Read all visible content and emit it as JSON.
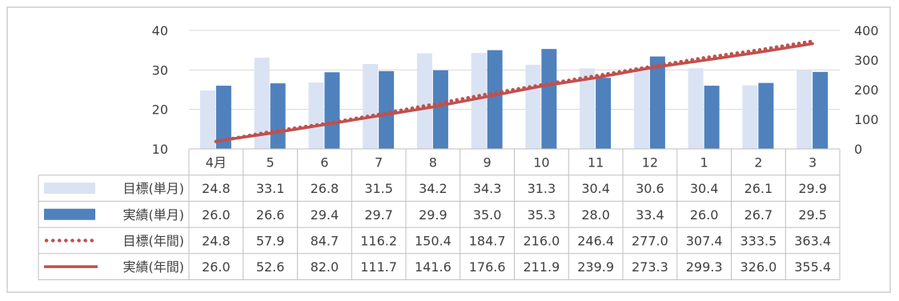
{
  "chart_data": {
    "type": "bar",
    "categories": [
      "4月",
      "5",
      "6",
      "7",
      "8",
      "9",
      "10",
      "11",
      "12",
      "1",
      "2",
      "3"
    ],
    "left_axis": {
      "min": 10,
      "max": 40,
      "ticks": [
        10,
        20,
        30,
        40
      ]
    },
    "right_axis": {
      "min": 0,
      "max": 400,
      "ticks": [
        0,
        100,
        200,
        300,
        400
      ]
    },
    "grid": "horizontal",
    "series": [
      {
        "name": "目標(単月)",
        "kind": "bar",
        "axis": "left",
        "color": "#dae3f3",
        "values": [
          24.8,
          33.1,
          26.8,
          31.5,
          34.2,
          34.3,
          31.3,
          30.4,
          30.6,
          30.4,
          26.1,
          29.9
        ]
      },
      {
        "name": "実績(単月)",
        "kind": "bar",
        "axis": "left",
        "color": "#4f81bd",
        "values": [
          26.0,
          26.6,
          29.4,
          29.7,
          29.9,
          35.0,
          35.3,
          28.0,
          33.4,
          26.0,
          26.7,
          29.5
        ]
      },
      {
        "name": "目標(年間)",
        "kind": "line-dotted",
        "axis": "right",
        "color": "#c0504d",
        "values": [
          24.8,
          57.9,
          84.7,
          116.2,
          150.4,
          184.7,
          216.0,
          246.4,
          277.0,
          307.4,
          333.5,
          363.4
        ]
      },
      {
        "name": "実績(年間)",
        "kind": "line",
        "axis": "right",
        "color": "#c0504d",
        "values": [
          26.0,
          52.6,
          82.0,
          111.7,
          141.6,
          176.6,
          211.9,
          239.9,
          273.3,
          299.3,
          326.0,
          355.4
        ]
      }
    ],
    "data_table": true
  }
}
